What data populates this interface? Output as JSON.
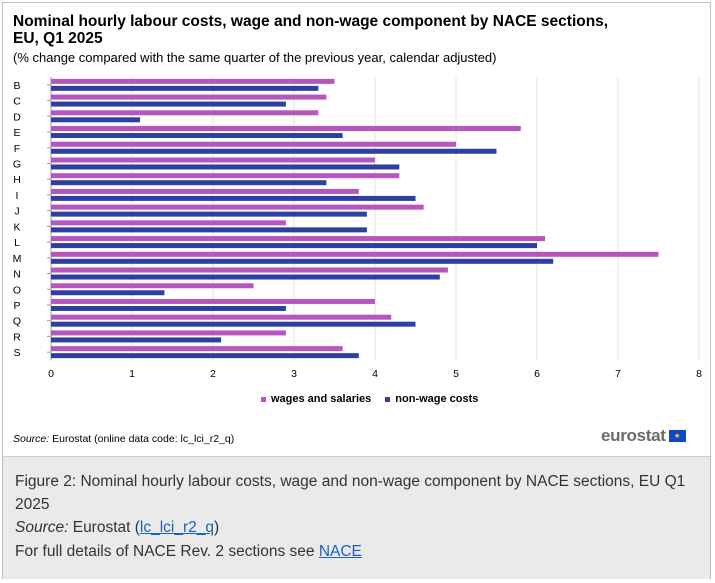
{
  "title": "Nominal hourly labour costs, wage and non-wage component by NACE sections, EU, Q1 2025",
  "subtitle": "(% change compared with the same quarter of the previous year, calendar adjusted)",
  "source_label": "Source:",
  "source_text": "Eurostat (online data code: lc_lci_r2_q)",
  "logo_text": "eurostat",
  "colors": {
    "wages": "#b656bd",
    "nonwage": "#2e3fa0",
    "grid": "#e3e3e3"
  },
  "caption": {
    "title": "Figure 2: Nominal hourly labour costs, wage and non-wage component by NACE sections, EU Q1 2025",
    "source_label": "Source:",
    "source_pre": " Eurostat (",
    "source_link": "lc_lci_r2_q",
    "source_post": ")",
    "note_pre": "For full details of NACE Rev. 2 sections see ",
    "note_link": "NACE"
  },
  "chart_data": {
    "type": "bar",
    "orientation": "horizontal",
    "categories": [
      "B",
      "C",
      "D",
      "E",
      "F",
      "G",
      "H",
      "I",
      "J",
      "K",
      "L",
      "M",
      "N",
      "O",
      "P",
      "Q",
      "R",
      "S"
    ],
    "series": [
      {
        "name": "wages and salaries",
        "values": [
          3.5,
          3.4,
          3.3,
          5.8,
          5.0,
          4.0,
          4.3,
          3.8,
          4.6,
          2.9,
          6.1,
          7.5,
          4.9,
          2.5,
          4.0,
          4.2,
          2.9,
          3.6
        ]
      },
      {
        "name": "non-wage costs",
        "values": [
          3.3,
          2.9,
          1.1,
          3.6,
          5.5,
          4.3,
          3.4,
          4.5,
          3.9,
          3.9,
          6.0,
          6.2,
          4.8,
          1.4,
          2.9,
          4.5,
          2.1,
          3.8
        ]
      }
    ],
    "xlim": [
      0,
      8
    ],
    "xticks": [
      0,
      1,
      2,
      3,
      4,
      5,
      6,
      7,
      8
    ],
    "grid": "vertical",
    "legend": "bottom"
  }
}
